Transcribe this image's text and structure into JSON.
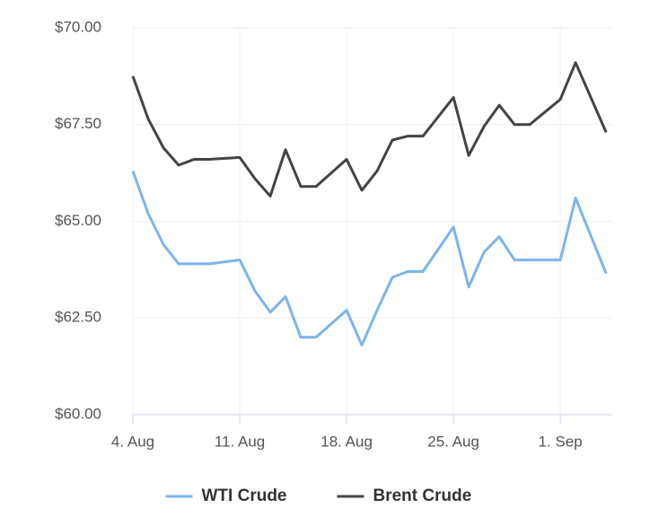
{
  "chart_data": {
    "type": "line",
    "x": [
      4,
      5,
      6,
      7,
      8,
      9,
      11,
      12,
      13,
      14,
      15,
      16,
      18,
      19,
      20,
      21,
      22,
      23,
      25,
      26,
      27,
      28,
      29,
      30,
      32,
      33,
      35
    ],
    "series": [
      {
        "name": "WTI Crude",
        "color": "#7cb5ec",
        "values": [
          66.3,
          65.2,
          64.4,
          63.9,
          63.9,
          63.9,
          64.0,
          63.2,
          62.65,
          63.05,
          62.0,
          62.0,
          62.7,
          61.8,
          62.7,
          63.55,
          63.7,
          63.7,
          64.85,
          63.3,
          64.2,
          64.6,
          64.0,
          64.0,
          64.0,
          65.6,
          63.65
        ]
      },
      {
        "name": "Brent Crude",
        "color": "#434348",
        "values": [
          68.75,
          67.65,
          66.9,
          66.45,
          66.6,
          66.6,
          66.65,
          66.1,
          65.65,
          66.85,
          65.9,
          65.9,
          66.6,
          65.8,
          66.3,
          67.1,
          67.2,
          67.2,
          68.2,
          66.7,
          67.45,
          68.0,
          67.5,
          67.5,
          68.15,
          69.1,
          67.3
        ]
      }
    ],
    "xlim": [
      4,
      35.4
    ],
    "xticks": [
      {
        "value": 4,
        "label": "4. Aug"
      },
      {
        "value": 11,
        "label": "11. Aug"
      },
      {
        "value": 18,
        "label": "18. Aug"
      },
      {
        "value": 25,
        "label": "25. Aug"
      },
      {
        "value": 32,
        "label": "1. Sep"
      }
    ],
    "ylim": [
      60,
      70
    ],
    "yticks": [
      {
        "value": 60,
        "label": "$60.00"
      },
      {
        "value": 62.5,
        "label": "$62.50"
      },
      {
        "value": 65,
        "label": "$65.00"
      },
      {
        "value": 67.5,
        "label": "$67.50"
      },
      {
        "value": 70,
        "label": "$70.00"
      }
    ],
    "grid": true,
    "legend": "bottom"
  }
}
